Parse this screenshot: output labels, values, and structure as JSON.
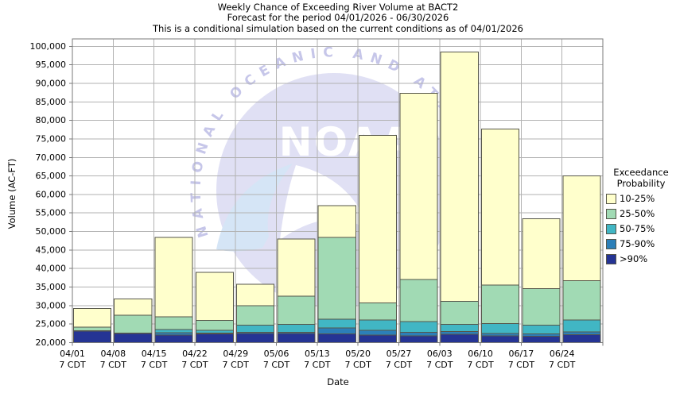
{
  "title": {
    "lines": [
      "Weekly Chance of Exceeding River Volume at BACT2",
      "Forecast for the period 04/01/2026 - 06/30/2026",
      "This is a conditional simulation based on the current conditions as of 04/01/2026"
    ]
  },
  "axes": {
    "x_label": "Date",
    "y_label": "Volume (AC-FT)",
    "x_tick_time_label": "7 CDT"
  },
  "legend": {
    "title_lines": [
      "Exceedance",
      "Probability"
    ],
    "items": [
      {
        "label": "10-25%",
        "color": "#ffffcc"
      },
      {
        "label": "25-50%",
        "color": "#a1dab4"
      },
      {
        "label": "50-75%",
        "color": "#41b6c4"
      },
      {
        "label": "75-90%",
        "color": "#2c7fb8"
      },
      {
        "label": ">90%",
        "color": "#253494"
      }
    ]
  },
  "watermark": {
    "arc_text": "NATIONAL OCEANIC AND ATMOSPHERIC",
    "logo_text": "NOAA",
    "circle_color": "#e0e0f4",
    "arc_text_color": "#c6c6e9",
    "logo_text_color": "#ffffff",
    "swoosh_color": "#d5e5f6",
    "sail_color": "#ffffff"
  },
  "chart_data": {
    "type": "bar",
    "stacked": true,
    "title": "Weekly Chance of Exceeding River Volume at BACT2",
    "xlabel": "Date",
    "ylabel": "Volume (AC-FT)",
    "unit": "AC-FT",
    "baseline": 20000,
    "ylim": [
      20000,
      102000
    ],
    "y_tick_min": 20000,
    "y_tick_max": 100000,
    "y_tick_step": 5000,
    "grid": true,
    "legend_position": "right",
    "categories": [
      "04/01",
      "04/08",
      "04/15",
      "04/22",
      "04/29",
      "05/06",
      "05/13",
      "05/20",
      "05/27",
      "06/03",
      "06/10",
      "06/17",
      "06/24"
    ],
    "series": [
      {
        "name": ">90%",
        "color": "#253494",
        "cumulative_tops": [
          23100,
          22500,
          22000,
          22400,
          22500,
          22500,
          22400,
          22000,
          21800,
          22200,
          21800,
          21700,
          22100
        ]
      },
      {
        "name": "75-90%",
        "color": "#2c7fb8",
        "cumulative_tops": [
          23100,
          22500,
          22700,
          22600,
          22800,
          22800,
          24000,
          23300,
          22800,
          23000,
          22500,
          22400,
          22900
        ]
      },
      {
        "name": "50-75%",
        "color": "#41b6c4",
        "cumulative_tops": [
          23200,
          22600,
          23500,
          23300,
          24700,
          24900,
          26300,
          26100,
          25700,
          24900,
          25100,
          24700,
          26100
        ]
      },
      {
        "name": "25-50%",
        "color": "#a1dab4",
        "cumulative_tops": [
          24200,
          27400,
          27000,
          26000,
          30000,
          32500,
          48400,
          30700,
          37000,
          31100,
          35500,
          34600,
          36700
        ]
      },
      {
        "name": "10-25%",
        "color": "#ffffcc",
        "cumulative_tops": [
          29200,
          31800,
          48400,
          39000,
          35800,
          48000,
          57000,
          75900,
          87300,
          98500,
          77700,
          53400,
          65000
        ]
      }
    ],
    "colors": {
      "gridline": "#b2b2b2",
      "frame": "#7a7a7a",
      "bar_border": "#56564a",
      "tick": "#7a7a7a"
    }
  }
}
